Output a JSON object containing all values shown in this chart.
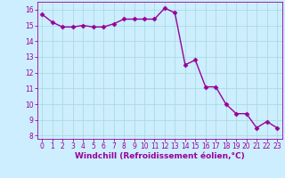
{
  "x": [
    0,
    1,
    2,
    3,
    4,
    5,
    6,
    7,
    8,
    9,
    10,
    11,
    12,
    13,
    14,
    15,
    16,
    17,
    18,
    19,
    20,
    21,
    22,
    23
  ],
  "y": [
    15.7,
    15.2,
    14.9,
    14.9,
    15.0,
    14.9,
    14.9,
    15.1,
    15.4,
    15.4,
    15.4,
    15.4,
    16.1,
    15.8,
    12.5,
    12.8,
    11.1,
    11.1,
    10.0,
    9.4,
    9.4,
    8.5,
    8.9,
    8.5
  ],
  "line_color": "#990099",
  "marker": "D",
  "markersize": 2.5,
  "linewidth": 1.0,
  "background_color": "#cceeff",
  "grid_color": "#aadddd",
  "xlabel": "Windchill (Refroidissement éolien,°C)",
  "xlabel_color": "#990099",
  "xlim": [
    -0.5,
    23.5
  ],
  "ylim": [
    7.8,
    16.5
  ],
  "yticks": [
    8,
    9,
    10,
    11,
    12,
    13,
    14,
    15,
    16
  ],
  "xticks": [
    0,
    1,
    2,
    3,
    4,
    5,
    6,
    7,
    8,
    9,
    10,
    11,
    12,
    13,
    14,
    15,
    16,
    17,
    18,
    19,
    20,
    21,
    22,
    23
  ],
  "tick_labelsize": 5.5,
  "xlabel_fontsize": 6.5
}
